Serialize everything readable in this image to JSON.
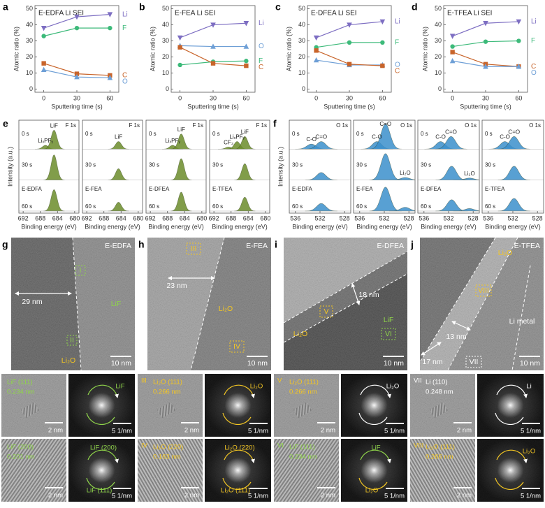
{
  "chart_data": [
    {
      "type": "line",
      "panel": "a",
      "title": "E-EDFA Li SEI",
      "xlabel": "Sputtering time (s)",
      "ylabel": "Atomic ratio (%)",
      "x": [
        0,
        30,
        60
      ],
      "xlim": [
        -8,
        68
      ],
      "xticks": [
        0,
        30,
        60
      ],
      "ylim": [
        -2,
        52
      ],
      "yticks": [
        0,
        10,
        20,
        30,
        40,
        50
      ],
      "series": [
        {
          "name": "Li",
          "color": "#7d6ec2",
          "marker": "triangle-down",
          "values": [
            38,
            45,
            46.5
          ]
        },
        {
          "name": "F",
          "color": "#3dba7a",
          "marker": "circle",
          "values": [
            33,
            38,
            38
          ]
        },
        {
          "name": "C",
          "color": "#c8642a",
          "marker": "square",
          "values": [
            16,
            9.5,
            8.5
          ]
        },
        {
          "name": "O",
          "color": "#6e9fd6",
          "marker": "triangle-up",
          "values": [
            12,
            7.5,
            7
          ]
        }
      ]
    },
    {
      "type": "line",
      "panel": "b",
      "title": "E-FEA Li SEI",
      "xlabel": "Sputtering time (s)",
      "ylabel": "Atomic ratio (%)",
      "x": [
        0,
        30,
        60
      ],
      "xlim": [
        -8,
        68
      ],
      "xticks": [
        0,
        30,
        60
      ],
      "ylim": [
        -2,
        52
      ],
      "yticks": [
        0,
        10,
        20,
        30,
        40,
        50
      ],
      "series": [
        {
          "name": "Li",
          "color": "#7d6ec2",
          "marker": "triangle-down",
          "values": [
            32,
            40,
            41
          ]
        },
        {
          "name": "O",
          "color": "#6e9fd6",
          "marker": "triangle-up",
          "values": [
            27,
            26.5,
            26.5
          ]
        },
        {
          "name": "F",
          "color": "#3dba7a",
          "marker": "circle",
          "values": [
            15,
            17,
            17.5
          ]
        },
        {
          "name": "C",
          "color": "#c8642a",
          "marker": "square",
          "values": [
            26,
            16,
            14.5
          ]
        }
      ]
    },
    {
      "type": "line",
      "panel": "c",
      "title": "E-DFEA Li SEI",
      "xlabel": "Sputtering time (s)",
      "ylabel": "Atomic ratio (%)",
      "x": [
        0,
        30,
        60
      ],
      "xlim": [
        -8,
        68
      ],
      "xticks": [
        0,
        30,
        60
      ],
      "ylim": [
        -2,
        52
      ],
      "yticks": [
        0,
        10,
        20,
        30,
        40,
        50
      ],
      "series": [
        {
          "name": "Li",
          "color": "#7d6ec2",
          "marker": "triangle-down",
          "values": [
            32,
            40,
            42
          ]
        },
        {
          "name": "F",
          "color": "#3dba7a",
          "marker": "circle",
          "values": [
            26,
            29,
            29
          ]
        },
        {
          "name": "O",
          "color": "#6e9fd6",
          "marker": "triangle-up",
          "values": [
            18,
            15,
            15
          ]
        },
        {
          "name": "C",
          "color": "#c8642a",
          "marker": "square",
          "values": [
            24,
            15.5,
            14.5
          ]
        }
      ]
    },
    {
      "type": "line",
      "panel": "d",
      "title": "E-TFEA Li SEI",
      "xlabel": "Sputtering time (s)",
      "ylabel": "Atomic ratio (%)",
      "x": [
        0,
        30,
        60
      ],
      "xlim": [
        -8,
        68
      ],
      "xticks": [
        0,
        30,
        60
      ],
      "ylim": [
        -2,
        52
      ],
      "yticks": [
        0,
        10,
        20,
        30,
        40,
        50
      ],
      "series": [
        {
          "name": "Li",
          "color": "#7d6ec2",
          "marker": "triangle-down",
          "values": [
            33,
            41,
            42
          ]
        },
        {
          "name": "F",
          "color": "#3dba7a",
          "marker": "circle",
          "values": [
            26.5,
            29.5,
            30
          ]
        },
        {
          "name": "C",
          "color": "#c8642a",
          "marker": "square",
          "values": [
            23,
            15.5,
            14
          ]
        },
        {
          "name": "O",
          "color": "#6e9fd6",
          "marker": "triangle-up",
          "values": [
            17.5,
            14,
            14
          ]
        }
      ]
    },
    {
      "type": "spectrum",
      "panel": "e",
      "element": "F 1s",
      "xlabel": "Binding energy (eV)",
      "ylabel": "Intensity (a.u.)",
      "xlim": [
        693,
        679
      ],
      "xticks": [
        692,
        688,
        684,
        680
      ],
      "color": "#6b8c2a",
      "width": 0.7,
      "rows": [
        {
          "time": "0 s",
          "labels": [
            "LiₓPFᵧ",
            "LiF"
          ],
          "peaks": [
            {
              "center": 686.8,
              "height": 0.15
            },
            {
              "center": 684.8,
              "height": 0.75
            }
          ]
        },
        {
          "time": "30 s",
          "peaks": [
            {
              "center": 684.8,
              "height": 1.0
            }
          ]
        },
        {
          "time": "60 s",
          "sample": "E-EDFA",
          "peaks": [
            {
              "center": 684.8,
              "height": 0.85
            }
          ]
        }
      ]
    },
    {
      "type": "spectrum",
      "element": "F 1s",
      "xlabel": "Binding energy (eV)",
      "xlim": [
        693,
        679
      ],
      "xticks": [
        692,
        688,
        684,
        680
      ],
      "color": "#6b8c2a",
      "width": 0.7,
      "rows": [
        {
          "time": "0 s",
          "labels": [
            "LiF"
          ],
          "peaks": [
            {
              "center": 684.6,
              "height": 0.3
            }
          ]
        },
        {
          "time": "30 s",
          "peaks": [
            {
              "center": 684.6,
              "height": 0.45
            }
          ]
        },
        {
          "time": "60 s",
          "sample": "E-FEA",
          "peaks": [
            {
              "center": 684.6,
              "height": 0.35
            }
          ]
        }
      ]
    },
    {
      "type": "spectrum",
      "element": "F 1s",
      "xlabel": "Binding energy (eV)",
      "xlim": [
        693,
        679
      ],
      "xticks": [
        692,
        688,
        684,
        680
      ],
      "color": "#6b8c2a",
      "width": 0.7,
      "rows": [
        {
          "time": "0 s",
          "labels": [
            "LiₓPFᵧ",
            "LiF"
          ],
          "peaks": [
            {
              "center": 686.8,
              "height": 0.15
            },
            {
              "center": 684.8,
              "height": 0.6
            }
          ]
        },
        {
          "time": "30 s",
          "peaks": [
            {
              "center": 684.8,
              "height": 0.85
            }
          ]
        },
        {
          "time": "60 s",
          "sample": "E-DFEA",
          "peaks": [
            {
              "center": 684.8,
              "height": 0.75
            }
          ]
        }
      ]
    },
    {
      "type": "spectrum",
      "element": "F 1s",
      "xlabel": "Binding energy (eV)",
      "xlim": [
        693,
        679
      ],
      "xticks": [
        692,
        688,
        684,
        680
      ],
      "color": "#6b8c2a",
      "width": 0.7,
      "rows": [
        {
          "time": "0 s",
          "labels": [
            "CF₃",
            "LiₓPFᵧ",
            "LiF"
          ],
          "peaks": [
            {
              "center": 688.6,
              "height": 0.08
            },
            {
              "center": 686.6,
              "height": 0.3
            },
            {
              "center": 684.8,
              "height": 0.5
            }
          ]
        },
        {
          "time": "30 s",
          "peaks": [
            {
              "center": 684.8,
              "height": 0.65
            }
          ]
        },
        {
          "time": "60 s",
          "sample": "E-TFEA",
          "peaks": [
            {
              "center": 684.8,
              "height": 0.55
            }
          ]
        }
      ]
    },
    {
      "type": "spectrum",
      "panel": "f",
      "element": "O 1s",
      "xlabel": "Binding energy (eV)",
      "ylabel": "Intensity (a.u.)",
      "xlim": [
        537,
        527
      ],
      "xticks": [
        536,
        532,
        528
      ],
      "color": "#3b8fcb",
      "width": 0.75,
      "rows": [
        {
          "time": "0 s",
          "labels": [
            "C-O",
            "C=O"
          ],
          "peaks": [
            {
              "center": 533.4,
              "height": 0.2
            },
            {
              "center": 531.8,
              "height": 0.3
            }
          ]
        },
        {
          "time": "30 s",
          "peaks": [
            {
              "center": 531.8,
              "height": 0.3
            }
          ]
        },
        {
          "time": "60 s",
          "sample": "E-EDFA",
          "peaks": [
            {
              "center": 531.8,
              "height": 0.3
            }
          ]
        }
      ]
    },
    {
      "type": "spectrum",
      "element": "O 1s",
      "xlabel": "Binding energy (eV)",
      "xlim": [
        537,
        527
      ],
      "xticks": [
        536,
        532,
        528
      ],
      "color": "#3b8fcb",
      "width": 0.75,
      "rows": [
        {
          "time": "0 s",
          "labels": [
            "C-O",
            "C=O"
          ],
          "peaks": [
            {
              "center": 533.2,
              "height": 0.3
            },
            {
              "center": 531.8,
              "height": 1.0
            }
          ]
        },
        {
          "time": "30 s",
          "labels": [
            "Li₂O"
          ],
          "peaks": [
            {
              "center": 528.6,
              "height": 0.1
            },
            {
              "center": 531.8,
              "height": 1.05
            }
          ]
        },
        {
          "time": "60 s",
          "sample": "E-FEA",
          "peaks": [
            {
              "center": 531.8,
              "height": 0.95
            },
            {
              "center": 528.6,
              "height": 0.15
            }
          ]
        }
      ]
    },
    {
      "type": "spectrum",
      "element": "O 1s",
      "xlabel": "Binding energy (eV)",
      "xlim": [
        537,
        527
      ],
      "xticks": [
        536,
        532,
        528
      ],
      "color": "#3b8fcb",
      "width": 0.75,
      "rows": [
        {
          "time": "0 s",
          "labels": [
            "C-O",
            "C=O"
          ],
          "peaks": [
            {
              "center": 533.3,
              "height": 0.3
            },
            {
              "center": 531.6,
              "height": 0.5
            }
          ]
        },
        {
          "time": "30 s",
          "labels": [
            "Li₂O"
          ],
          "peaks": [
            {
              "center": 528.6,
              "height": 0.08
            },
            {
              "center": 531.5,
              "height": 0.55
            }
          ]
        },
        {
          "time": "60 s",
          "sample": "E-DFEA",
          "peaks": [
            {
              "center": 531.5,
              "height": 0.45
            },
            {
              "center": 528.6,
              "height": 0.1
            }
          ]
        }
      ]
    },
    {
      "type": "spectrum",
      "element": "O 1s",
      "xlabel": "Binding energy (eV)",
      "xlim": [
        537,
        527
      ],
      "xticks": [
        536,
        532,
        528
      ],
      "color": "#3b8fcb",
      "width": 0.75,
      "rows": [
        {
          "time": "0 s",
          "labels": [
            "C-O",
            "C=O"
          ],
          "peaks": [
            {
              "center": 533.3,
              "height": 0.3
            },
            {
              "center": 531.8,
              "height": 0.5
            }
          ]
        },
        {
          "time": "30 s",
          "peaks": [
            {
              "center": 531.8,
              "height": 0.55
            }
          ]
        },
        {
          "time": "60 s",
          "sample": "E-TFEA",
          "peaks": [
            {
              "center": 531.8,
              "height": 0.5
            }
          ]
        }
      ]
    }
  ],
  "tem": [
    {
      "panel": "g",
      "sample": "E-EDFA",
      "thickness": [
        "29 nm"
      ],
      "phases": [
        "LiF",
        "Li₂O"
      ],
      "regions": [
        "I",
        "II"
      ],
      "scale": "10 nm",
      "hr": [
        {
          "plane": "LiF (111)",
          "spacing": "0.234 nm",
          "scale": "2 nm",
          "fft": [
            "LiF"
          ],
          "fft_scale": "5 1/nm"
        },
        {
          "plane": "LiF (200)",
          "spacing": "0.201 nm",
          "scale": "2 nm",
          "fft": [
            "LiF (200)",
            "LiF (111)"
          ],
          "fft_scale": "5 1/nm"
        }
      ]
    },
    {
      "panel": "h",
      "sample": "E-FEA",
      "thickness": [
        "23 nm"
      ],
      "phases": [
        "Li₂O"
      ],
      "regions": [
        "III",
        "IV"
      ],
      "scale": "10 nm",
      "hr": [
        {
          "region": "III",
          "plane": "Li₂O (111)",
          "spacing": "0.266 nm",
          "scale": "2 nm",
          "fft": [
            "Li₂O"
          ],
          "fft_scale": "5 1/nm"
        },
        {
          "region": "IV",
          "plane": "Li₂O (220)",
          "spacing": "0.163 nm",
          "scale": "2 nm",
          "fft": [
            "Li₂O (220)",
            "Li₂O (111)"
          ],
          "fft_scale": "5 1/nm"
        }
      ]
    },
    {
      "panel": "i",
      "sample": "E-DFEA",
      "thickness": [
        "18 nm"
      ],
      "phases": [
        "Li₂O",
        "LiF"
      ],
      "regions": [
        "V",
        "VI"
      ],
      "scale": "10 nm",
      "hr": [
        {
          "region": "V",
          "plane": "Li₂O (111)",
          "spacing": "0.266 nm",
          "scale": "2 nm",
          "fft": [
            "Li₂O"
          ],
          "fft_scale": "5 1/nm"
        },
        {
          "region": "VI",
          "plane": "LiF (111)",
          "spacing": "0.234 nm",
          "scale": "2 nm",
          "fft": [
            "LiF",
            "Li₂O"
          ],
          "fft_scale": "5 1/nm"
        }
      ]
    },
    {
      "panel": "j",
      "sample": "E-TFEA",
      "thickness": [
        "13 nm",
        "17 nm"
      ],
      "phases": [
        "Li₂O"
      ],
      "other": "Li metal",
      "regions": [
        "VIII",
        "VII"
      ],
      "scale": "10 nm",
      "hr": [
        {
          "region": "VII",
          "plane": "Li (110)",
          "spacing": "0.248 nm",
          "scale": "2 nm",
          "fft": [
            "Li"
          ],
          "fft_scale": "5 1/nm"
        },
        {
          "region": "VIII",
          "plane": "Li₂O (111)",
          "spacing": "0.266 nm",
          "scale": "2 nm",
          "fft": [
            "Li₂O"
          ],
          "fft_scale": "5 1/nm"
        }
      ]
    }
  ]
}
